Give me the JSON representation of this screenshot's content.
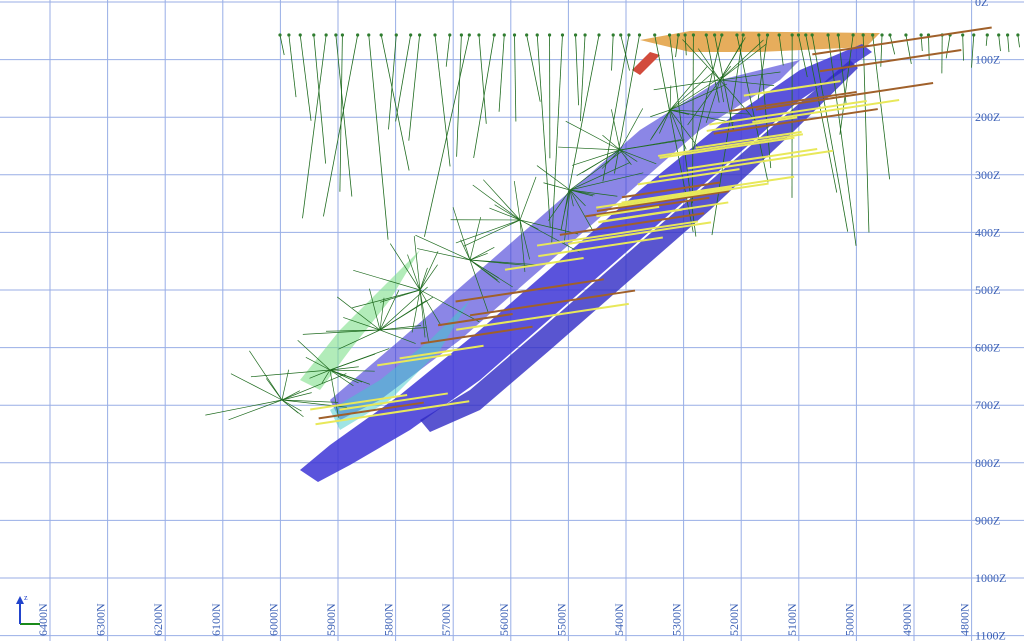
{
  "z_axis": {
    "labels": [
      "0Z",
      "100Z",
      "200Z",
      "300Z",
      "400Z",
      "500Z",
      "600Z",
      "700Z",
      "800Z",
      "900Z",
      "1000Z",
      "1100Z"
    ]
  },
  "n_axis": {
    "labels": [
      "6400N",
      "6300N",
      "6200N",
      "6100N",
      "6000N",
      "5900N",
      "5800N",
      "5700N",
      "5600N",
      "5500N",
      "5400N",
      "5300N",
      "5200N",
      "5100N",
      "5000N",
      "4900N",
      "4800N"
    ]
  }
}
